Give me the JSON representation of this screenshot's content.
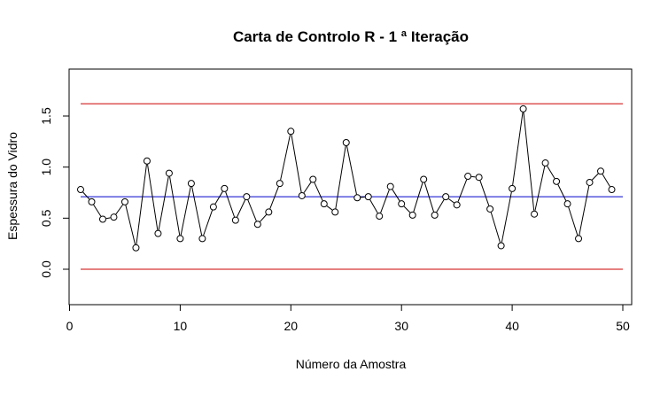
{
  "chart_data": {
    "type": "line",
    "title": "Carta de Controlo R -  1 ª Iteração",
    "xlabel": "Número da Amostra",
    "ylabel": "Espessura do Vidro",
    "xlim": [
      0,
      50
    ],
    "ylim": [
      -0.35,
      1.9
    ],
    "x_ticks": [
      0,
      10,
      20,
      30,
      40,
      50
    ],
    "x_tick_labels": [
      "0",
      "10",
      "20",
      "30",
      "40",
      "50"
    ],
    "y_ticks": [
      0.0,
      0.5,
      1.0,
      1.5
    ],
    "y_tick_labels": [
      "0.0",
      "0.5",
      "1.0",
      "1.5"
    ],
    "grid": false,
    "legend": "none",
    "series": [
      {
        "color": "#000000",
        "marker": "open-circle",
        "x": [
          1,
          2,
          3,
          4,
          5,
          6,
          7,
          8,
          9,
          10,
          11,
          12,
          13,
          14,
          15,
          16,
          17,
          18,
          19,
          20,
          21,
          22,
          23,
          24,
          25,
          26,
          27,
          28,
          29,
          30,
          31,
          32,
          33,
          34,
          35,
          36,
          37,
          38,
          39,
          40,
          41,
          42,
          43,
          44,
          45,
          46,
          47,
          48,
          49
        ],
        "values": [
          0.78,
          0.66,
          0.49,
          0.51,
          0.66,
          0.21,
          1.06,
          0.35,
          0.94,
          0.3,
          0.84,
          0.3,
          0.61,
          0.79,
          0.48,
          0.71,
          0.44,
          0.56,
          0.84,
          1.35,
          0.72,
          0.88,
          0.64,
          0.56,
          1.24,
          0.7,
          0.71,
          0.52,
          0.81,
          0.64,
          0.53,
          0.88,
          0.53,
          0.71,
          0.63,
          0.91,
          0.9,
          0.59,
          0.23,
          0.79,
          1.57,
          0.54,
          1.04,
          0.86,
          0.64,
          0.3,
          0.85,
          0.96,
          0.78
        ]
      }
    ],
    "control_lines": [
      {
        "value": 1.62,
        "color": "#cc0000",
        "x_range": [
          1,
          50
        ]
      },
      {
        "value": 0.71,
        "color": "#0000cc",
        "x_range": [
          1,
          50
        ]
      },
      {
        "value": 0.0,
        "color": "#cc0000",
        "x_range": [
          1,
          50
        ]
      }
    ]
  }
}
